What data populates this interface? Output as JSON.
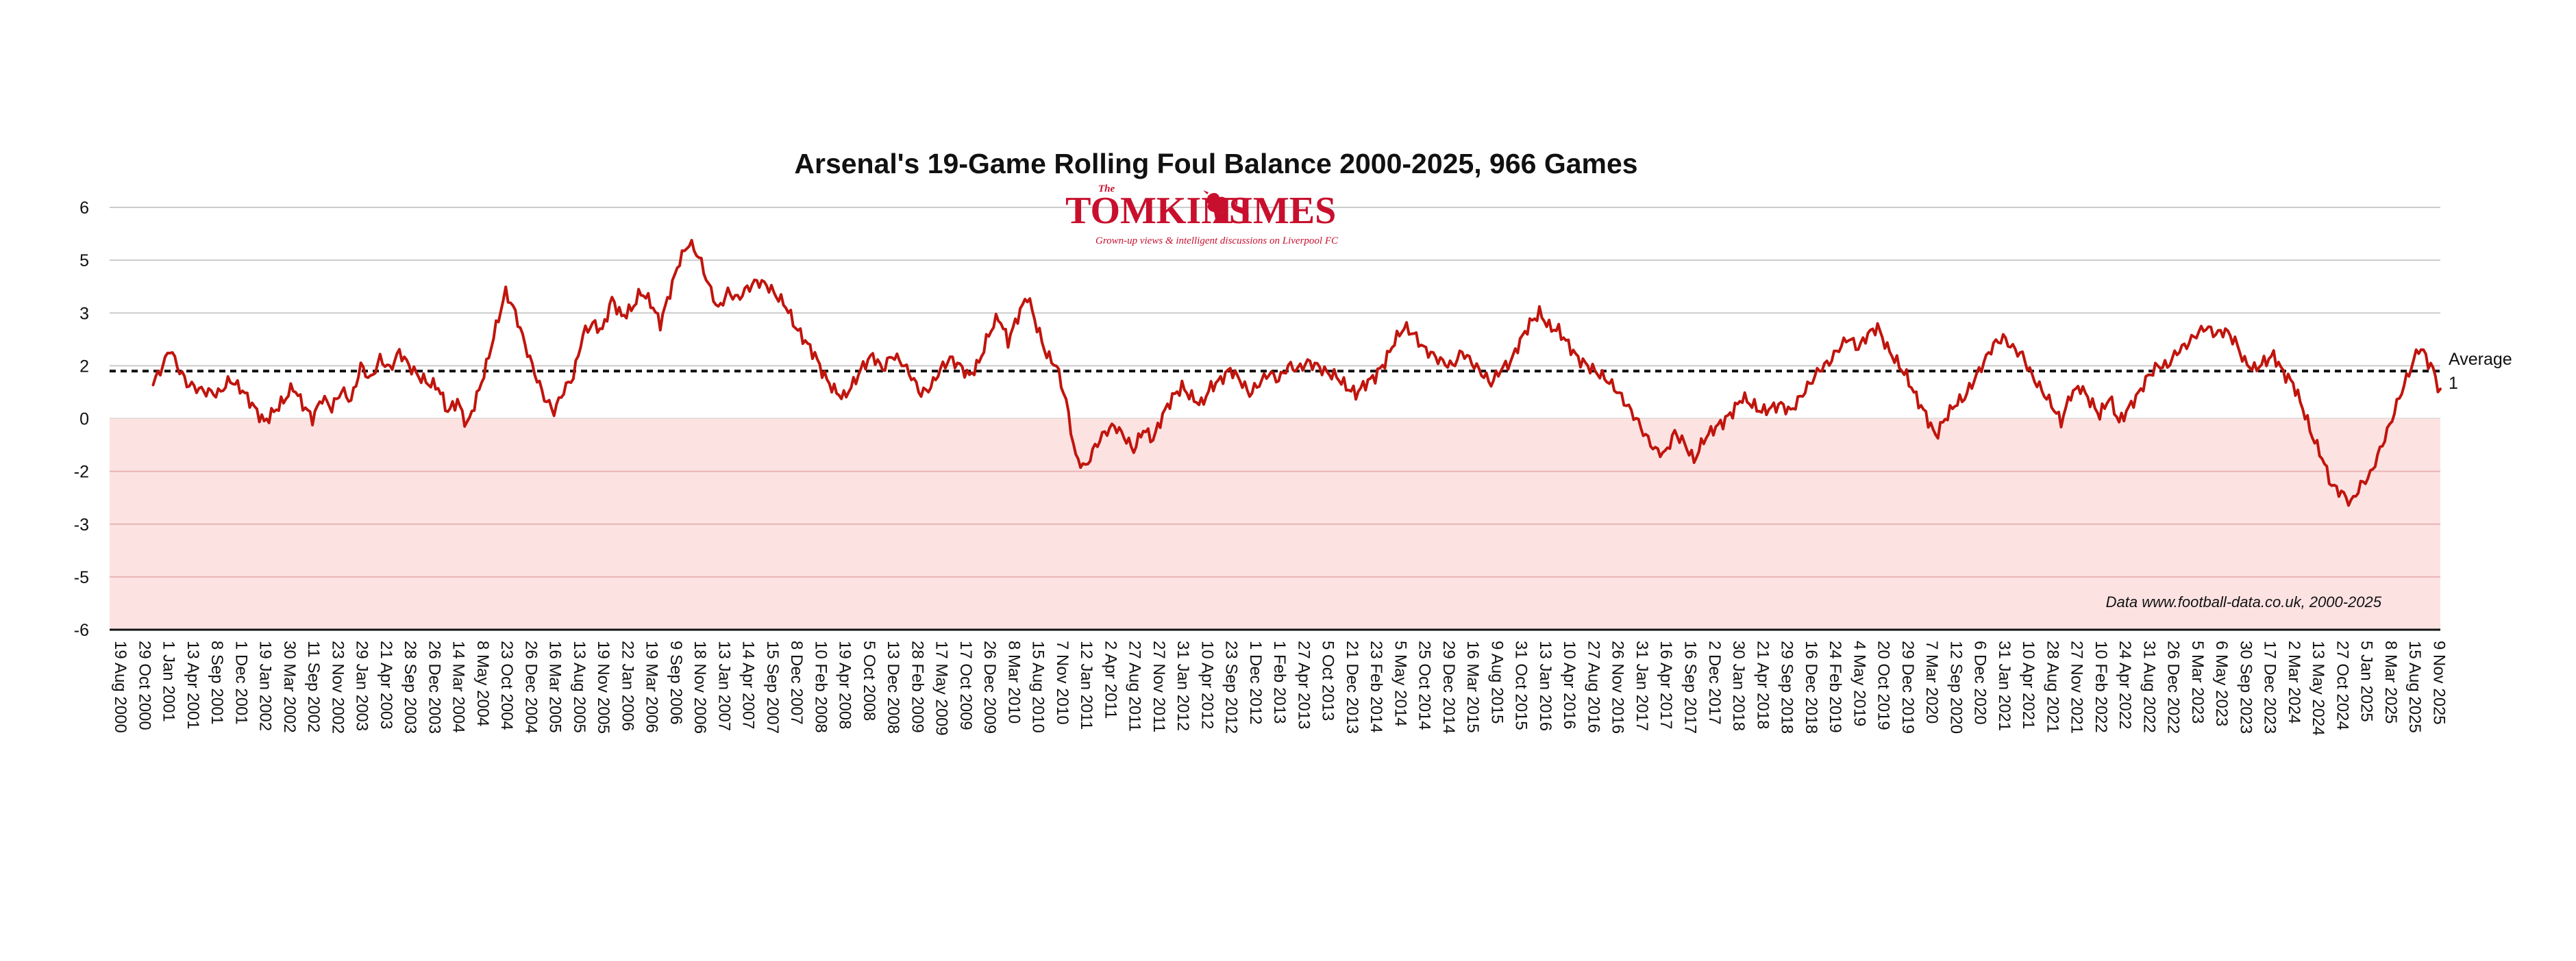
{
  "chart_data": {
    "type": "line",
    "title": "Arsenal's 19-Game Rolling Foul Balance 2000-2025, 966 Games",
    "xlabel": "",
    "ylabel": "",
    "ylim": [
      -6,
      6
    ],
    "y_ticks": [
      "6",
      "5",
      "3",
      "2",
      "0",
      "-2",
      "-3",
      "-5",
      "-6"
    ],
    "y_tick_values": [
      6,
      4.5,
      3,
      1.5,
      0,
      -1.5,
      -3,
      -4.5,
      -6
    ],
    "x_tick_labels": [
      "19 Aug 2000",
      "29 Oct 2000",
      "1 Jan 2001",
      "13 Apr 2001",
      "8 Sep 2001",
      "1 Dec 2001",
      "19 Jan 2002",
      "30 Mar 2002",
      "11 Sep 2002",
      "23 Nov 2002",
      "29 Jan 2003",
      "21 Apr 2003",
      "28 Sep 2003",
      "26 Dec 2003",
      "14 Mar 2004",
      "8 May 2004",
      "23 Oct 2004",
      "26 Dec 2004",
      "16 Mar 2005",
      "13 Aug 2005",
      "19 Nov 2005",
      "22 Jan 2006",
      "19 Mar 2006",
      "9 Sep 2006",
      "18 Nov 2006",
      "13 Jan 2007",
      "14 Apr 2007",
      "15 Sep 2007",
      "8 Dec 2007",
      "10 Feb 2008",
      "19 Apr 2008",
      "5 Oct 2008",
      "13 Dec 2008",
      "28 Feb 2009",
      "17 May 2009",
      "17 Oct 2009",
      "26 Dec 2009",
      "8 Mar 2010",
      "15 Aug 2010",
      "7 Nov 2010",
      "12 Jan 2011",
      "2 Apr 2011",
      "27 Aug 2011",
      "27 Nov 2011",
      "31 Jan 2012",
      "10 Apr 2012",
      "23 Sep 2012",
      "1 Dec 2012",
      "1 Feb 2013",
      "27 Apr 2013",
      "5 Oct 2013",
      "21 Dec 2013",
      "23 Feb 2014",
      "5 May 2014",
      "25 Oct 2014",
      "29 Dec 2014",
      "16 Mar 2015",
      "9 Aug 2015",
      "31 Oct 2015",
      "13 Jan 2016",
      "10 Apr 2016",
      "27 Aug 2016",
      "26 Nov 2016",
      "31 Jan 2017",
      "16 Apr 2017",
      "16 Sep 2017",
      "2 Dec 2017",
      "30 Jan 2018",
      "21 Apr 2018",
      "29 Sep 2018",
      "16 Dec 2018",
      "24 Feb 2019",
      "4 May 2019",
      "20 Oct 2019",
      "29 Dec 2019",
      "7 Mar 2020",
      "12 Sep 2020",
      "6 Dec 2020",
      "31 Jan 2021",
      "10 Apr 2021",
      "28 Aug 2021",
      "27 Nov 2021",
      "10 Feb 2022",
      "24 Apr 2022",
      "31 Aug 2022",
      "26 Dec 2022",
      "5 Mar 2023",
      "6 May 2023",
      "30 Sep 2023",
      "17 Dec 2023",
      "2 Mar 2024",
      "13 May 2024",
      "27 Oct 2024",
      "5 Jan 2025",
      "8 Mar 2025",
      "15 Aug 2025",
      "9 Nov 2025"
    ],
    "x_tick_index": [
      0,
      10,
      20,
      30,
      40,
      50,
      60,
      70,
      80,
      90,
      100,
      110,
      120,
      130,
      140,
      150,
      160,
      170,
      180,
      190,
      200,
      210,
      220,
      230,
      240,
      250,
      260,
      270,
      280,
      290,
      300,
      310,
      320,
      330,
      340,
      350,
      360,
      370,
      380,
      390,
      400,
      410,
      420,
      430,
      440,
      450,
      460,
      470,
      480,
      490,
      500,
      510,
      520,
      530,
      540,
      550,
      560,
      570,
      580,
      590,
      600,
      610,
      620,
      630,
      640,
      650,
      660,
      670,
      680,
      690,
      700,
      710,
      720,
      730,
      740,
      750,
      760,
      770,
      780,
      790,
      800,
      810,
      820,
      830,
      840,
      850,
      860,
      870,
      880,
      890,
      900,
      910,
      920,
      930,
      940,
      950,
      960
    ],
    "series": [
      {
        "name": "19-Game Rolling Foul Balance",
        "color": "#c0150d",
        "x_index_range": [
          18,
          965
        ],
        "knots": [
          [
            18,
            1.0
          ],
          [
            22,
            1.5
          ],
          [
            25,
            2.0
          ],
          [
            28,
            1.5
          ],
          [
            32,
            1.0
          ],
          [
            38,
            0.8
          ],
          [
            45,
            0.7
          ],
          [
            50,
            1.1
          ],
          [
            55,
            0.8
          ],
          [
            60,
            0.3
          ],
          [
            64,
            -0.1
          ],
          [
            68,
            0.2
          ],
          [
            72,
            0.5
          ],
          [
            76,
            0.9
          ],
          [
            80,
            0.4
          ],
          [
            84,
            0.0
          ],
          [
            88,
            0.6
          ],
          [
            92,
            0.3
          ],
          [
            96,
            0.8
          ],
          [
            100,
            0.5
          ],
          [
            104,
            1.5
          ],
          [
            108,
            1.1
          ],
          [
            112,
            1.7
          ],
          [
            116,
            1.4
          ],
          [
            120,
            1.9
          ],
          [
            124,
            1.5
          ],
          [
            128,
            1.2
          ],
          [
            132,
            1.0
          ],
          [
            136,
            0.9
          ],
          [
            140,
            0.2
          ],
          [
            144,
            0.5
          ],
          [
            148,
            -0.2
          ],
          [
            152,
            0.6
          ],
          [
            156,
            1.5
          ],
          [
            160,
            2.6
          ],
          [
            164,
            3.6
          ],
          [
            168,
            3.0
          ],
          [
            172,
            2.1
          ],
          [
            176,
            1.3
          ],
          [
            180,
            0.6
          ],
          [
            184,
            0.2
          ],
          [
            188,
            0.8
          ],
          [
            192,
            1.2
          ],
          [
            196,
            2.4
          ],
          [
            200,
            2.7
          ],
          [
            204,
            2.5
          ],
          [
            208,
            3.4
          ],
          [
            212,
            2.9
          ],
          [
            216,
            3.1
          ],
          [
            220,
            3.6
          ],
          [
            224,
            3.3
          ],
          [
            228,
            2.7
          ],
          [
            232,
            3.6
          ],
          [
            236,
            4.5
          ],
          [
            240,
            5.0
          ],
          [
            244,
            4.6
          ],
          [
            248,
            3.8
          ],
          [
            252,
            3.1
          ],
          [
            256,
            3.6
          ],
          [
            260,
            3.4
          ],
          [
            264,
            3.7
          ],
          [
            268,
            3.9
          ],
          [
            272,
            3.8
          ],
          [
            276,
            3.5
          ],
          [
            280,
            3.2
          ],
          [
            284,
            2.6
          ],
          [
            288,
            2.2
          ],
          [
            292,
            1.8
          ],
          [
            296,
            1.2
          ],
          [
            300,
            0.8
          ],
          [
            304,
            0.6
          ],
          [
            308,
            1.0
          ],
          [
            312,
            1.5
          ],
          [
            316,
            1.8
          ],
          [
            320,
            1.4
          ],
          [
            324,
            1.8
          ],
          [
            328,
            1.6
          ],
          [
            332,
            1.2
          ],
          [
            336,
            0.7
          ],
          [
            340,
            0.9
          ],
          [
            344,
            1.4
          ],
          [
            348,
            1.7
          ],
          [
            352,
            1.5
          ],
          [
            356,
            1.2
          ],
          [
            360,
            1.6
          ],
          [
            364,
            2.4
          ],
          [
            368,
            2.9
          ],
          [
            372,
            2.2
          ],
          [
            376,
            2.9
          ],
          [
            380,
            3.5
          ],
          [
            384,
            2.6
          ],
          [
            388,
            1.8
          ],
          [
            392,
            1.5
          ],
          [
            396,
            0.5
          ],
          [
            400,
            -1.1
          ],
          [
            404,
            -1.4
          ],
          [
            408,
            -0.8
          ],
          [
            412,
            -0.4
          ],
          [
            416,
            -0.2
          ],
          [
            420,
            -0.5
          ],
          [
            424,
            -0.9
          ],
          [
            428,
            -0.3
          ],
          [
            432,
            -0.6
          ],
          [
            436,
            0.1
          ],
          [
            440,
            0.6
          ],
          [
            444,
            0.9
          ],
          [
            448,
            0.6
          ],
          [
            452,
            0.4
          ],
          [
            456,
            0.9
          ],
          [
            460,
            1.1
          ],
          [
            464,
            1.4
          ],
          [
            468,
            1.1
          ],
          [
            472,
            0.7
          ],
          [
            476,
            1.0
          ],
          [
            480,
            1.3
          ],
          [
            484,
            1.1
          ],
          [
            488,
            1.5
          ],
          [
            492,
            1.4
          ],
          [
            496,
            1.6
          ],
          [
            500,
            1.5
          ],
          [
            504,
            1.3
          ],
          [
            508,
            1.2
          ],
          [
            512,
            0.9
          ],
          [
            516,
            0.7
          ],
          [
            520,
            1.0
          ],
          [
            524,
            1.2
          ],
          [
            528,
            1.6
          ],
          [
            532,
            2.2
          ],
          [
            536,
            2.6
          ],
          [
            540,
            2.4
          ],
          [
            544,
            2.0
          ],
          [
            548,
            1.8
          ],
          [
            552,
            1.6
          ],
          [
            556,
            1.5
          ],
          [
            560,
            1.9
          ],
          [
            564,
            1.6
          ],
          [
            568,
            1.3
          ],
          [
            572,
            1.0
          ],
          [
            576,
            1.4
          ],
          [
            580,
            1.6
          ],
          [
            584,
            2.2
          ],
          [
            588,
            2.7
          ],
          [
            592,
            3.0
          ],
          [
            596,
            2.6
          ],
          [
            600,
            2.5
          ],
          [
            604,
            2.1
          ],
          [
            608,
            1.7
          ],
          [
            612,
            1.5
          ],
          [
            616,
            1.3
          ],
          [
            620,
            1.1
          ],
          [
            624,
            0.8
          ],
          [
            628,
            0.4
          ],
          [
            632,
            0.0
          ],
          [
            636,
            -0.5
          ],
          [
            640,
            -0.9
          ],
          [
            644,
            -1.0
          ],
          [
            648,
            -0.4
          ],
          [
            652,
            -0.7
          ],
          [
            656,
            -1.2
          ],
          [
            660,
            -0.6
          ],
          [
            664,
            -0.3
          ],
          [
            668,
            -0.1
          ],
          [
            672,
            0.2
          ],
          [
            676,
            0.6
          ],
          [
            680,
            0.4
          ],
          [
            684,
            0.2
          ],
          [
            688,
            0.3
          ],
          [
            692,
            0.4
          ],
          [
            696,
            0.2
          ],
          [
            700,
            0.6
          ],
          [
            704,
            1.0
          ],
          [
            708,
            1.4
          ],
          [
            712,
            1.6
          ],
          [
            716,
            2.0
          ],
          [
            720,
            2.3
          ],
          [
            724,
            2.0
          ],
          [
            728,
            2.4
          ],
          [
            732,
            2.6
          ],
          [
            736,
            2.0
          ],
          [
            740,
            1.6
          ],
          [
            744,
            1.2
          ],
          [
            748,
            0.6
          ],
          [
            752,
            0.1
          ],
          [
            756,
            -0.5
          ],
          [
            760,
            0.0
          ],
          [
            764,
            0.4
          ],
          [
            768,
            0.6
          ],
          [
            772,
            1.1
          ],
          [
            776,
            1.6
          ],
          [
            780,
            2.1
          ],
          [
            784,
            2.3
          ],
          [
            788,
            2.0
          ],
          [
            792,
            1.8
          ],
          [
            796,
            1.2
          ],
          [
            800,
            0.8
          ],
          [
            804,
            0.4
          ],
          [
            808,
            -0.1
          ],
          [
            812,
            0.7
          ],
          [
            816,
            0.9
          ],
          [
            820,
            0.5
          ],
          [
            824,
            0.1
          ],
          [
            828,
            0.6
          ],
          [
            832,
            -0.1
          ],
          [
            836,
            0.3
          ],
          [
            840,
            0.7
          ],
          [
            844,
            1.2
          ],
          [
            848,
            1.5
          ],
          [
            852,
            1.5
          ],
          [
            856,
            1.9
          ],
          [
            860,
            2.1
          ],
          [
            864,
            2.4
          ],
          [
            868,
            2.6
          ],
          [
            872,
            2.4
          ],
          [
            876,
            2.5
          ],
          [
            880,
            2.2
          ],
          [
            884,
            1.6
          ],
          [
            888,
            1.4
          ],
          [
            892,
            1.6
          ],
          [
            896,
            1.8
          ],
          [
            900,
            1.3
          ],
          [
            904,
            1.0
          ],
          [
            908,
            0.3
          ],
          [
            912,
            -0.5
          ],
          [
            916,
            -1.1
          ],
          [
            920,
            -1.9
          ],
          [
            924,
            -2.1
          ],
          [
            928,
            -2.4
          ],
          [
            932,
            -1.9
          ],
          [
            936,
            -1.6
          ],
          [
            940,
            -0.9
          ],
          [
            944,
            -0.2
          ],
          [
            948,
            0.6
          ],
          [
            952,
            1.3
          ],
          [
            956,
            2.0
          ],
          [
            958,
            1.9
          ],
          [
            960,
            1.6
          ],
          [
            962,
            1.4
          ],
          [
            965,
            0.7
          ]
        ]
      }
    ],
    "average": {
      "label_line1": "Average",
      "label_line2": "1",
      "value": 1.35
    },
    "shaded_negative_region": true,
    "grid": true,
    "colors": {
      "line": "#c0150d",
      "shade": "#fde2e2",
      "grid": "#cccccc",
      "axis": "#111111",
      "brand_red": "#c8102e"
    }
  },
  "logo": {
    "prefix": "The",
    "name_left": "TOMKINS",
    "name_right": "TIMES",
    "tagline": "Grown-up views & intelligent discussions on Liverpool FC",
    "icon": "liver-bird-icon"
  },
  "source_note": "Data www.football-data.co.uk, 2000-2025"
}
